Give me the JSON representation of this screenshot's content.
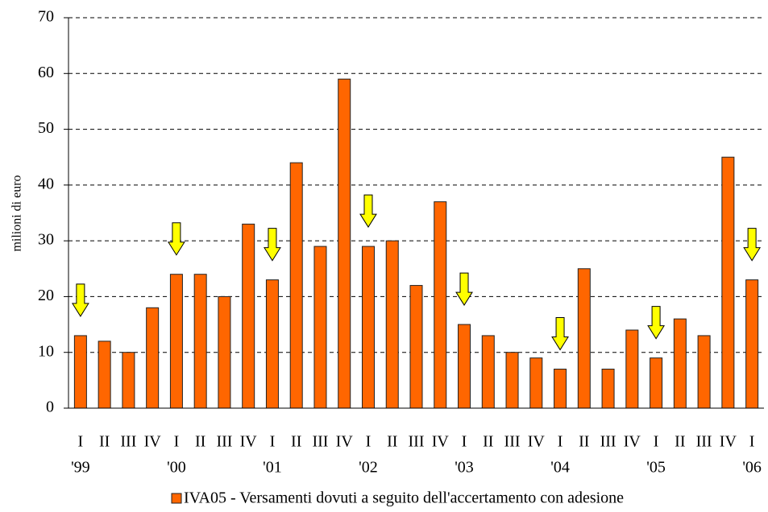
{
  "chart_data": {
    "type": "bar",
    "y_label": "milioni di euro",
    "categories": [
      "I",
      "II",
      "III",
      "IV",
      "I",
      "II",
      "III",
      "IV",
      "I",
      "II",
      "III",
      "IV",
      "I",
      "II",
      "III",
      "IV",
      "I",
      "II",
      "III",
      "IV",
      "I",
      "II",
      "III",
      "IV",
      "I",
      "II",
      "III",
      "IV",
      "I"
    ],
    "category_years": [
      "'99",
      null,
      null,
      null,
      "'00",
      null,
      null,
      null,
      "'01",
      null,
      null,
      null,
      "'02",
      null,
      null,
      null,
      "'03",
      null,
      null,
      null,
      "'04",
      null,
      null,
      null,
      "'05",
      null,
      null,
      null,
      "'06"
    ],
    "series": [
      {
        "name": "IVA05 - Versamenti dovuti a seguito dell'accertamento con adesione",
        "color": "#ff6600",
        "values": [
          13,
          12,
          10,
          18,
          24,
          24,
          20,
          33,
          23,
          44,
          29,
          59,
          29,
          30,
          22,
          37,
          15,
          13,
          10,
          9,
          7,
          25,
          7,
          14,
          9,
          16,
          13,
          45,
          23
        ]
      }
    ],
    "arrow_color": "#ffff00",
    "ylim": [
      0,
      70
    ],
    "yticks": [
      0,
      10,
      20,
      30,
      40,
      50,
      60,
      70
    ],
    "grid": true
  }
}
